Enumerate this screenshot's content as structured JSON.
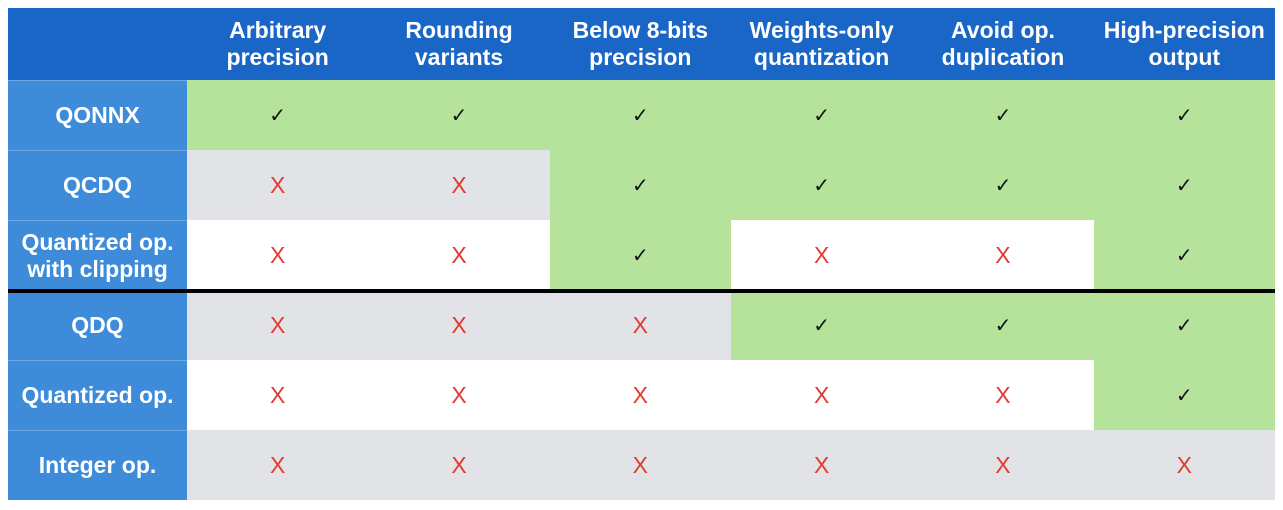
{
  "table": {
    "corner": "",
    "columns": [
      "Arbitrary\nprecision",
      "Rounding\nvariants",
      "Below 8-bits\nprecision",
      "Weights-only\nquantization",
      "Avoid op.\nduplication",
      "High-precision\noutput"
    ],
    "rows": [
      {
        "label": "QONNX",
        "cells": [
          "✓",
          "✓",
          "✓",
          "✓",
          "✓",
          "✓"
        ]
      },
      {
        "label": "QCDQ",
        "cells": [
          "X",
          "X",
          "✓",
          "✓",
          "✓",
          "✓"
        ]
      },
      {
        "label": "Quantized op.\nwith clipping",
        "cells": [
          "X",
          "X",
          "✓",
          "X",
          "X",
          "✓"
        ]
      },
      {
        "label": "QDQ",
        "cells": [
          "X",
          "X",
          "X",
          "✓",
          "✓",
          "✓"
        ]
      },
      {
        "label": "Quantized op.",
        "cells": [
          "X",
          "X",
          "X",
          "X",
          "X",
          "✓"
        ]
      },
      {
        "label": "Integer op.",
        "cells": [
          "X",
          "X",
          "X",
          "X",
          "X",
          "X"
        ]
      }
    ]
  },
  "colors": {
    "header_bg": "#1a66c7",
    "row_label_bg": "#3d8bd9",
    "supported_bg": "#b5e39b",
    "alt_row_bg": "#e2e3e7",
    "cross_color": "#e23b2e",
    "divider": "#000000"
  },
  "icons": {
    "supported": "check-icon",
    "unsupported": "cross-icon"
  }
}
